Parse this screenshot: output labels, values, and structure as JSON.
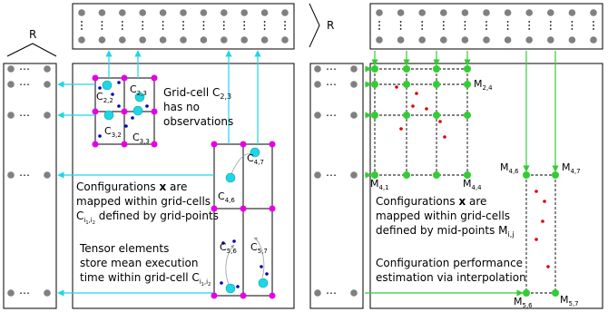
{
  "labels": {
    "r_left": "R",
    "r_top": "R",
    "cell_2_2": "C",
    "cell_2_2_sub": "2,2",
    "cell_2_3": "C",
    "cell_2_3_sub": "2,3",
    "cell_3_2": "C",
    "cell_3_2_sub": "3,2",
    "cell_3_3": "C",
    "cell_3_3_sub": "3,3",
    "cell_4_6": "C",
    "cell_4_6_sub": "4,6",
    "cell_4_7": "C",
    "cell_4_7_sub": "4,7",
    "cell_5_6": "C",
    "cell_5_6_sub": "5,6",
    "cell_5_7": "C",
    "cell_5_7_sub": "5,7",
    "note_line1_prefix": "Grid-cell C",
    "note_line1_sub": "2,3",
    "note_line2": "has no",
    "note_line3": "observations",
    "left_text1_a": "Configurations ",
    "left_text1_b": "x",
    "left_text1_c": " are",
    "left_text2": "mapped within grid-cells",
    "left_text3_a": "C",
    "left_text3_sub": "i",
    "left_text3_sub2": "1",
    "left_text3_comma": ",i",
    "left_text3_sub3": "2",
    "left_text3_b": " defined by grid-points",
    "left_text4": "Tensor elements",
    "left_text5": "store mean execution",
    "left_text6_a": "time within grid-cell C",
    "left_text6_sub": "i",
    "left_text6_sub2": "1",
    "left_text6_comma": ",i",
    "left_text6_sub3": "2",
    "m_2_4": "M",
    "m_2_4_sub": "2,4",
    "m_4_1": "M",
    "m_4_1_sub": "4,1",
    "m_4_4": "M",
    "m_4_4_sub": "4,4",
    "m_4_6": "M",
    "m_4_6_sub": "4,6",
    "m_4_7": "M",
    "m_4_7_sub": "4,7",
    "m_5_6": "M",
    "m_5_6_sub": "5,6",
    "m_5_7": "M",
    "m_5_7_sub": "5,7",
    "right_text1_a": "Configurations ",
    "right_text1_b": "x",
    "right_text1_c": " are",
    "right_text2": "mapped within grid-cells",
    "right_text3_a": "defined by mid-points M",
    "right_text3_sub": "i,j",
    "right_text4": "Configuration performance",
    "right_text5": "estimation via interpolation",
    "dots": "⋯"
  },
  "colors": {
    "grid_point": "#e600e6",
    "observation": "#1fd6e6",
    "small_point": "#0000c0",
    "midpoint": "#33cc33",
    "red_point": "#e00000",
    "arrow_cyan": "#1fd6e6",
    "arrow_green": "#33cc33",
    "gray_dot": "#808080"
  }
}
